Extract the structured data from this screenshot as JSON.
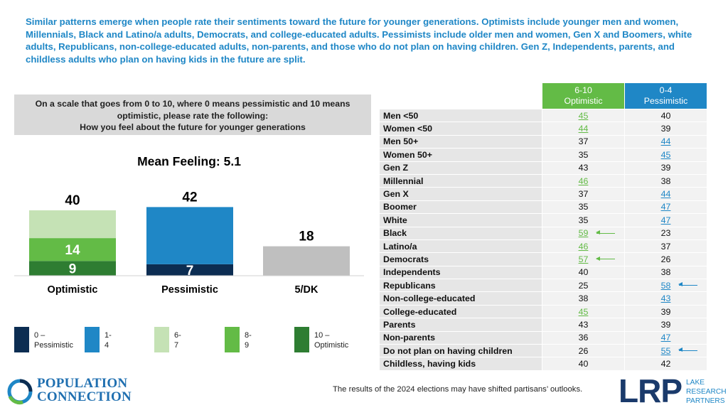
{
  "headline": "Similar patterns emerge when people rate their sentiments toward the future for younger generations. Optimists include younger men and women, Millennials, Black and Latino/a adults, Democrats, and college-educated adults. Pessimists include older men and women, Gen X and Boomers, white adults, Republicans, non-college-educated adults, non-parents, and those who do not plan on having children. Gen Z, Independents, parents, and childless adults who plan on having kids in the future are split.",
  "question": {
    "line1": "On a scale that goes from 0 to 10, where 0 means pessimistic and 10 means optimistic, please rate the following:",
    "line2": "How you feel about the future for younger generations"
  },
  "mean_label": "Mean Feeling: 5.1",
  "legend": [
    {
      "label": "0 –\nPessimistic",
      "color": "#0c2d52"
    },
    {
      "label": "1-4",
      "color": "#1f87c6"
    },
    {
      "label": "6-7",
      "color": "#c5e2b5"
    },
    {
      "label": "8-9",
      "color": "#63bb46"
    },
    {
      "label": "10 –\nOptimistic",
      "color": "#2e7d32"
    }
  ],
  "chart_data": {
    "type": "bar",
    "stacked": true,
    "categories": [
      "Optimistic",
      "Pessimistic",
      "5/DK"
    ],
    "totals": [
      40,
      42,
      18
    ],
    "series": [
      {
        "name": "10 – Optimistic",
        "color": "#2e7d32",
        "values": [
          9,
          0,
          0
        ],
        "label": [
          "9",
          "",
          ""
        ]
      },
      {
        "name": "8-9",
        "color": "#63bb46",
        "values": [
          14,
          0,
          0
        ],
        "label": [
          "14",
          "",
          ""
        ]
      },
      {
        "name": "6-7",
        "color": "#c5e2b5",
        "values": [
          17,
          0,
          0
        ],
        "label": [
          "",
          "",
          ""
        ]
      },
      {
        "name": "0 – Pessimistic",
        "color": "#0c2d52",
        "values": [
          0,
          7,
          0
        ],
        "label": [
          "",
          "7",
          ""
        ]
      },
      {
        "name": "1-4",
        "color": "#1f87c6",
        "values": [
          0,
          35,
          0
        ],
        "label": [
          "",
          "",
          ""
        ]
      },
      {
        "name": "5/DK",
        "color": "#bfbfbf",
        "values": [
          0,
          0,
          18
        ],
        "label": [
          "",
          "",
          ""
        ]
      }
    ],
    "ylim": [
      0,
      45
    ]
  },
  "table": {
    "col_optimistic": "6-10\nOptimistic",
    "col_pessimistic": "0-4\nPessimistic",
    "colors": {
      "optimistic": "#63bb46",
      "pessimistic": "#1f87c6"
    },
    "rows": [
      {
        "label": "Men <50",
        "opt": "45",
        "pes": "40",
        "hl": "opt",
        "arrow": ""
      },
      {
        "label": "Women <50",
        "opt": "44",
        "pes": "39",
        "hl": "opt",
        "arrow": ""
      },
      {
        "label": "Men 50+",
        "opt": "37",
        "pes": "44",
        "hl": "pes",
        "arrow": ""
      },
      {
        "label": "Women 50+",
        "opt": "35",
        "pes": "45",
        "hl": "pes",
        "arrow": ""
      },
      {
        "label": "Gen Z",
        "opt": "43",
        "pes": "39",
        "hl": "",
        "arrow": ""
      },
      {
        "label": "Millennial",
        "opt": "46",
        "pes": "38",
        "hl": "opt",
        "arrow": ""
      },
      {
        "label": "Gen X",
        "opt": "37",
        "pes": "44",
        "hl": "pes",
        "arrow": ""
      },
      {
        "label": "Boomer",
        "opt": "35",
        "pes": "47",
        "hl": "pes",
        "arrow": ""
      },
      {
        "label": "White",
        "opt": "35",
        "pes": "47",
        "hl": "pes",
        "arrow": ""
      },
      {
        "label": "Black",
        "opt": "59",
        "pes": "23",
        "hl": "opt",
        "arrow": "opt"
      },
      {
        "label": "Latino/a",
        "opt": "46",
        "pes": "37",
        "hl": "opt",
        "arrow": ""
      },
      {
        "label": "Democrats",
        "opt": "57",
        "pes": "26",
        "hl": "opt",
        "arrow": "opt"
      },
      {
        "label": "Independents",
        "opt": "40",
        "pes": "38",
        "hl": "",
        "arrow": ""
      },
      {
        "label": "Republicans",
        "opt": "25",
        "pes": "58",
        "hl": "pes",
        "arrow": "pes"
      },
      {
        "label": "Non-college-educated",
        "opt": "38",
        "pes": "43",
        "hl": "pes",
        "arrow": ""
      },
      {
        "label": "College-educated",
        "opt": "45",
        "pes": "39",
        "hl": "opt",
        "arrow": ""
      },
      {
        "label": "Parents",
        "opt": "43",
        "pes": "39",
        "hl": "",
        "arrow": ""
      },
      {
        "label": "Non-parents",
        "opt": "36",
        "pes": "47",
        "hl": "pes",
        "arrow": ""
      },
      {
        "label": "Do not plan on having children",
        "opt": "26",
        "pes": "55",
        "hl": "pes",
        "arrow": "pes"
      },
      {
        "label": "Childless, having kids",
        "opt": "40",
        "pes": "42",
        "hl": "",
        "arrow": ""
      }
    ]
  },
  "footnote": "The results of the 2024 elections may have shifted partisans’ outlooks.",
  "logos": {
    "left_line1": "POPULATION",
    "left_line2": "CONNECTION",
    "right_main": "LRP",
    "right_sub1": "LAKE",
    "right_sub2": "RESEARCH",
    "right_sub3": "PARTNERS"
  }
}
